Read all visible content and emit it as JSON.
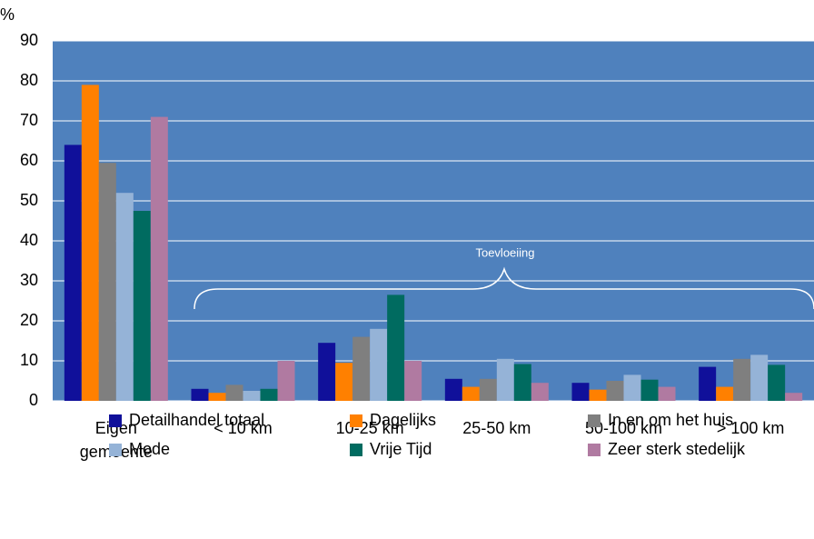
{
  "chart_data": {
    "type": "bar",
    "y_label": "%",
    "annotation": "Toevloeiing",
    "categories": [
      "Eigen gemeente",
      "< 10 km",
      "10-25 km",
      "25-50 km",
      "50-100 km",
      "> 100 km"
    ],
    "series": [
      {
        "name": "Detailhandel totaal",
        "color": "#10109a",
        "values": [
          64,
          3,
          14.5,
          5.5,
          4.5,
          8.5
        ]
      },
      {
        "name": "Dagelijks",
        "color": "#ff8000",
        "values": [
          79,
          2,
          9.5,
          3.5,
          2.8,
          3.5
        ]
      },
      {
        "name": "In en om het huis",
        "color": "#7f7f7f",
        "values": [
          59.5,
          4,
          16,
          5.5,
          5,
          10.5
        ]
      },
      {
        "name": "Mode",
        "color": "#95b3d7",
        "values": [
          52,
          2.5,
          18,
          10.5,
          6.5,
          11.5
        ]
      },
      {
        "name": "Vrije Tijd",
        "color": "#006b60",
        "values": [
          47.5,
          3,
          26.5,
          9.2,
          5.3,
          9
        ]
      },
      {
        "name": "Zeer sterk stedelijk",
        "color": "#b07aa1",
        "values": [
          71,
          10,
          10,
          4.5,
          3.5,
          2
        ]
      }
    ],
    "ylim": [
      0,
      90
    ],
    "yticks": [
      0,
      10,
      20,
      30,
      40,
      50,
      60,
      70,
      80,
      90
    ],
    "grid": true,
    "plot_color": "#4f81bd"
  }
}
